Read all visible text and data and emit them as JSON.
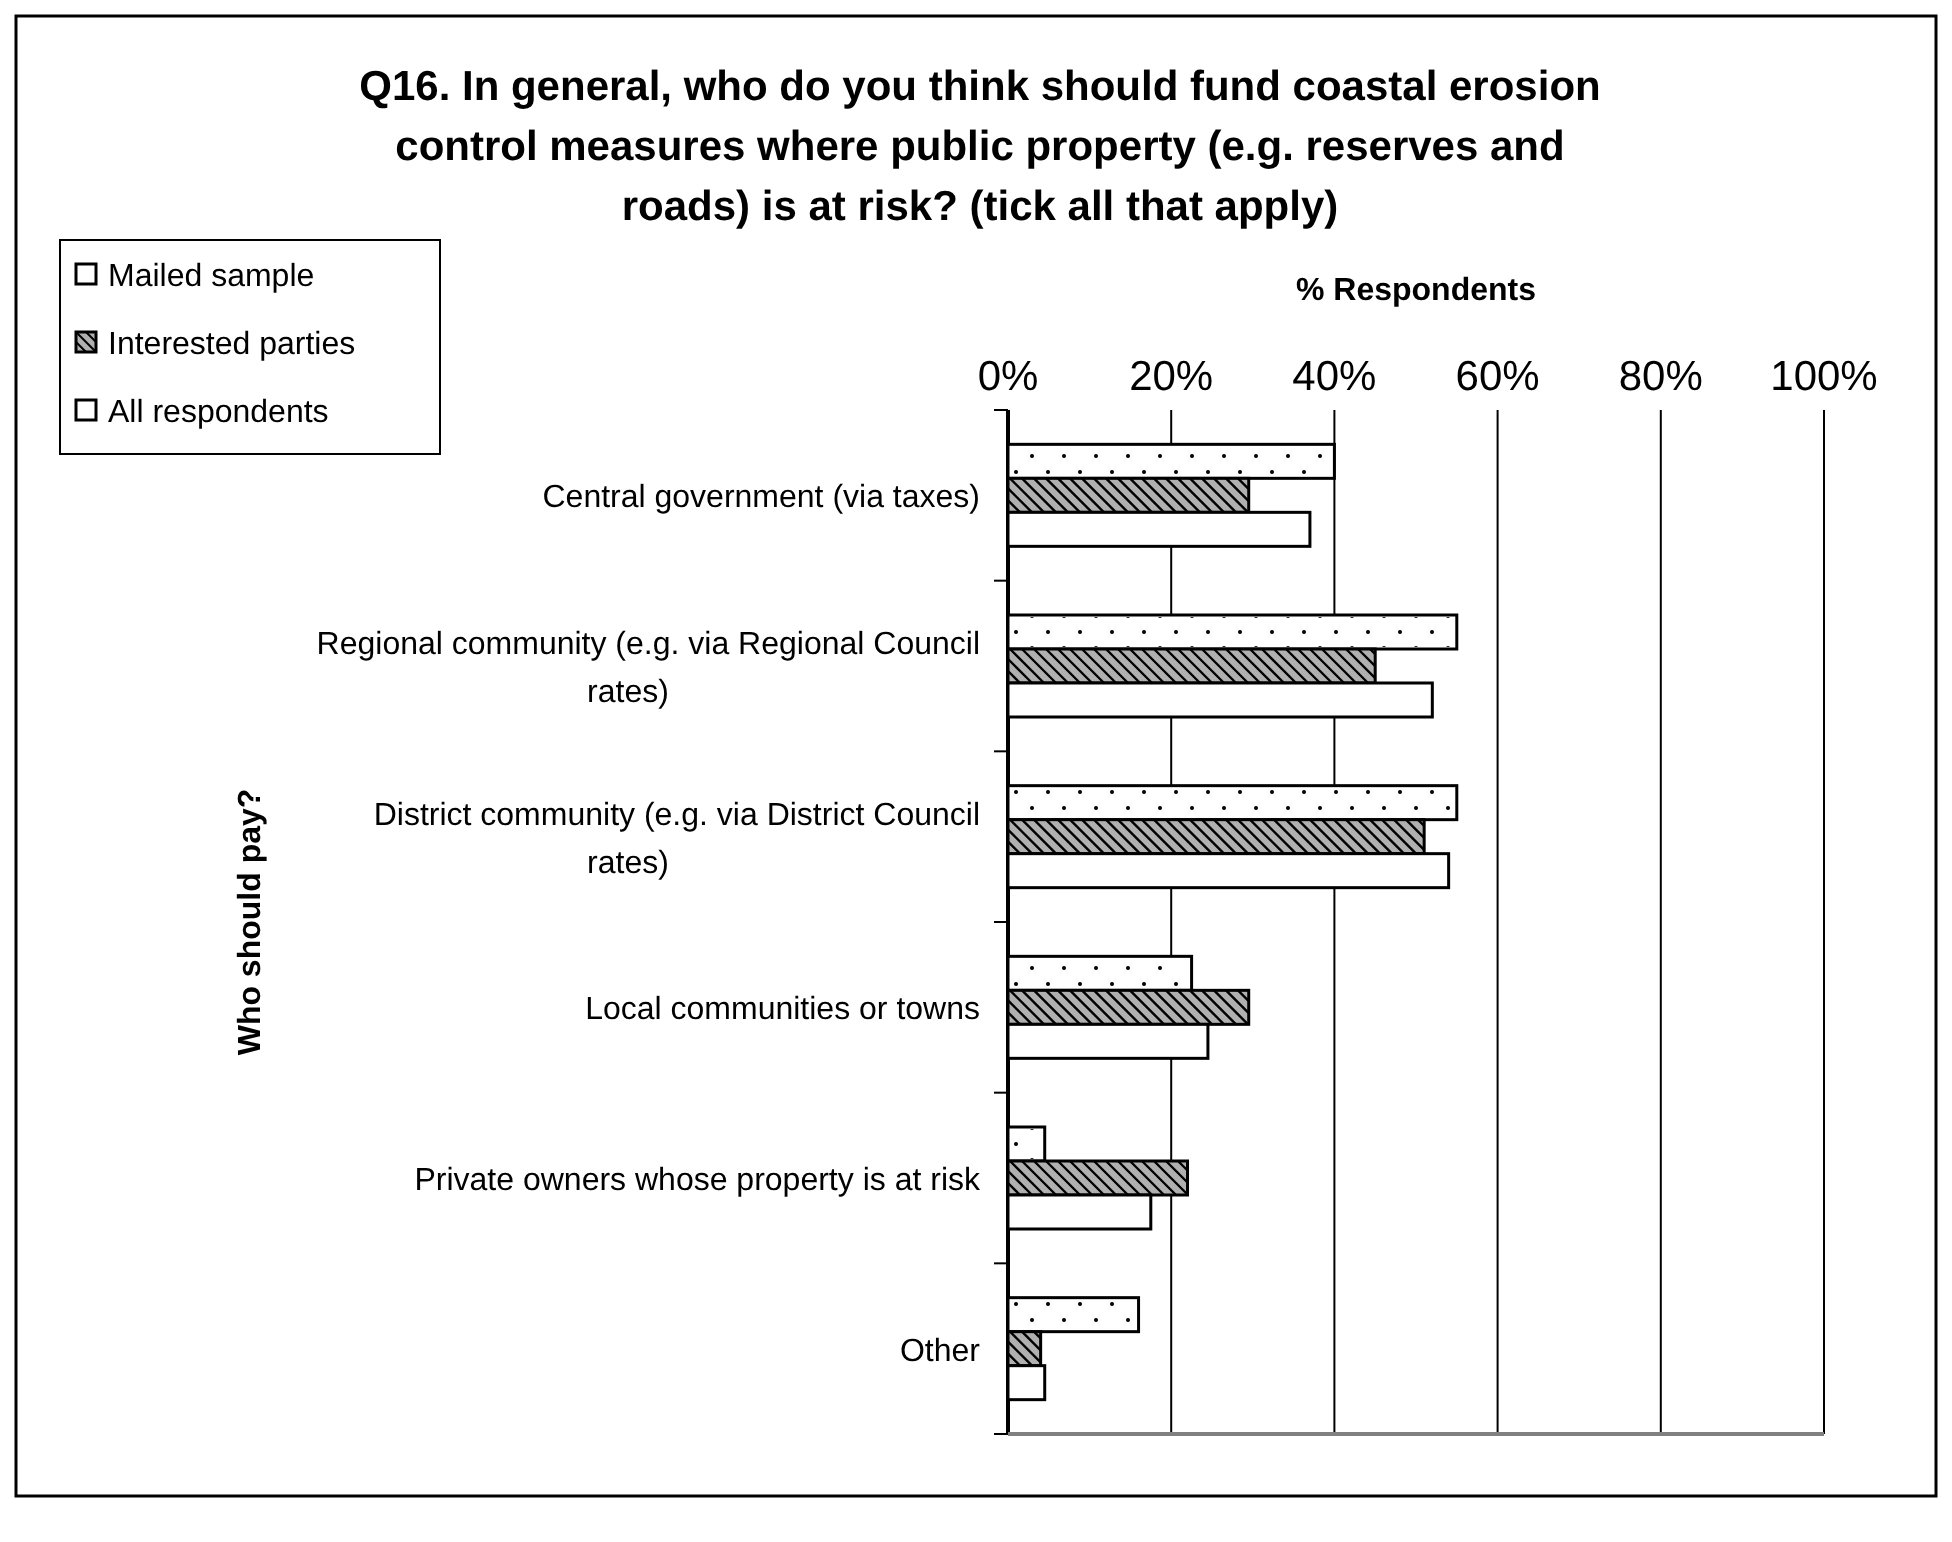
{
  "chart_data": {
    "type": "bar",
    "orientation": "horizontal",
    "title": "Q16. In general, who do you think should fund coastal erosion control measures where public property (e.g. reserves and roads) is at risk? (tick all that apply)",
    "xlabel": "% Respondents",
    "ylabel": "Who should pay?",
    "categories": [
      "Central government (via taxes)",
      "Regional community (e.g. via Regional Council rates)",
      "District community (e.g. via District Council rates)",
      "Local communities or towns",
      "Private owners whose property is at risk",
      "Other"
    ],
    "series": [
      {
        "name": "Mailed sample",
        "color": "#ffffff",
        "values": [
          40,
          55,
          55,
          22.5,
          4.5,
          16
        ]
      },
      {
        "name": "Interested parties",
        "color": "#b0b0b0",
        "values": [
          29.5,
          45,
          51,
          29.5,
          22,
          4
        ]
      },
      {
        "name": "All respondents",
        "color": "#ffffff",
        "values": [
          37,
          52,
          54,
          24.5,
          17.5,
          4.5
        ]
      }
    ],
    "xlim": [
      0,
      100
    ],
    "xticks": [
      {
        "value": 0,
        "label": "0%"
      },
      {
        "value": 20,
        "label": "20%"
      },
      {
        "value": 40,
        "label": "40%"
      },
      {
        "value": 60,
        "label": "60%"
      },
      {
        "value": 80,
        "label": "80%"
      },
      {
        "value": 100,
        "label": "100%"
      }
    ],
    "grid": "x",
    "legend": "top left"
  }
}
